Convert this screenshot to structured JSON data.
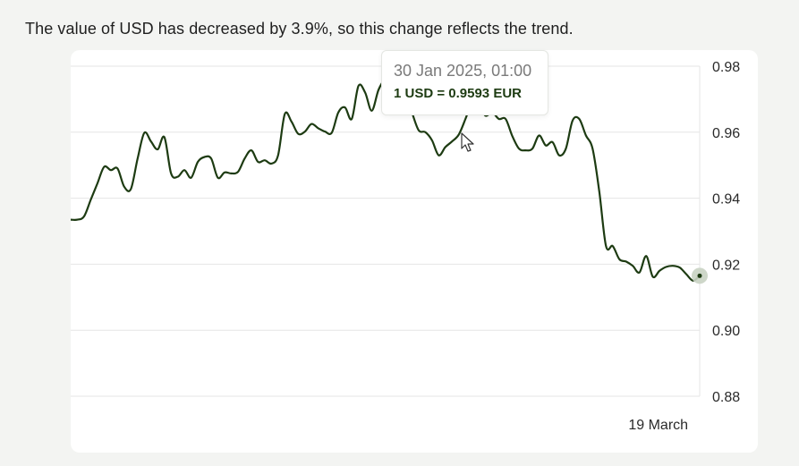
{
  "headline": "The value of USD has decreased by 3.9%, so this change reflects the trend.",
  "colors": {
    "line": "#1d3b12",
    "grid": "#e6e6e6",
    "card": "#ffffff",
    "background": "#f3f4f2",
    "marker": "#c9d3c3"
  },
  "tooltip": {
    "date": "30 Jan 2025, 01:00",
    "rate": "1 USD = 0.9593 EUR"
  },
  "chart_data": {
    "type": "line",
    "title": "",
    "xlabel": "",
    "ylabel": "",
    "ylim": [
      0.88,
      0.98
    ],
    "y_ticks": [
      "0.98",
      "0.96",
      "0.94",
      "0.92",
      "0.90",
      "0.88"
    ],
    "y_axis_position": "right",
    "grid": true,
    "x_tick_labels": [
      "19 March"
    ],
    "x_tick_positions": [
      0.9
    ],
    "series": [
      {
        "y": [
          0.9335,
          0.9335,
          0.9345,
          0.9395,
          0.9445,
          0.9495,
          0.9485,
          0.949,
          0.9435,
          0.9428,
          0.952,
          0.9598,
          0.9572,
          0.9548,
          0.9585,
          0.9475,
          0.9465,
          0.9485,
          0.9462,
          0.951,
          0.9525,
          0.952,
          0.9462,
          0.9478,
          0.9475,
          0.948,
          0.952,
          0.9545,
          0.951,
          0.9515,
          0.9505,
          0.953,
          0.9655,
          0.9632,
          0.9595,
          0.9602,
          0.9625,
          0.9612,
          0.9602,
          0.9598,
          0.966,
          0.9675,
          0.964,
          0.974,
          0.972,
          0.9665,
          0.9728,
          0.9762,
          0.9775,
          0.9764,
          0.972,
          0.966,
          0.9606,
          0.96,
          0.9575,
          0.953,
          0.9555,
          0.9572,
          0.9593,
          0.964,
          0.969,
          0.968,
          0.965,
          0.966,
          0.964,
          0.964,
          0.9588,
          0.955,
          0.9545,
          0.955,
          0.959,
          0.956,
          0.957,
          0.953,
          0.955,
          0.9635,
          0.964,
          0.959,
          0.955,
          0.942,
          0.9255,
          0.9255,
          0.9215,
          0.9208,
          0.9195,
          0.9175,
          0.9225,
          0.9162,
          0.918,
          0.9192,
          0.9195,
          0.919,
          0.917,
          0.915,
          0.9165
        ]
      }
    ]
  }
}
